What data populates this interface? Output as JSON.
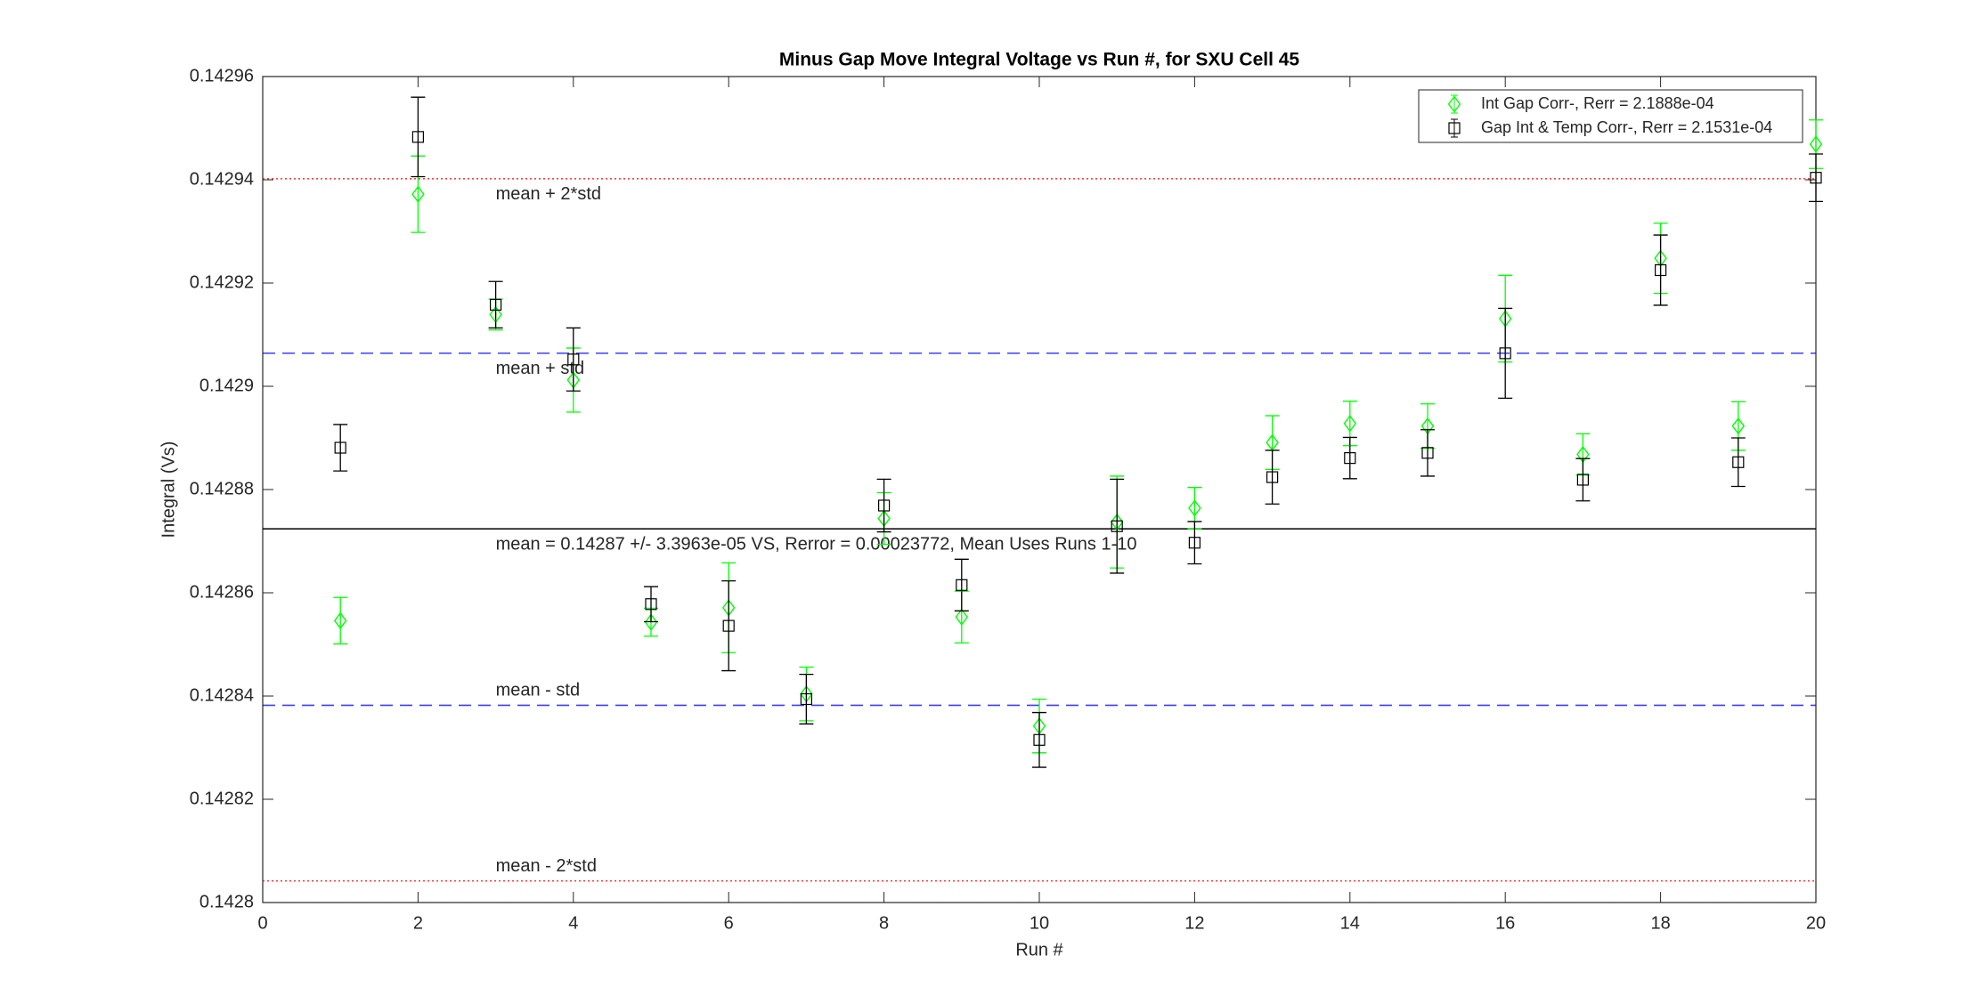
{
  "chart_data": {
    "type": "errorbar",
    "title": "Minus Gap Move Integral Voltage vs Run #, for SXU Cell 45",
    "xlabel": "Run #",
    "ylabel": "Integral (Vs)",
    "x": [
      1,
      2,
      3,
      4,
      5,
      6,
      7,
      8,
      9,
      10,
      11,
      12,
      13,
      14,
      15,
      16,
      17,
      18,
      19,
      20
    ],
    "series": [
      {
        "name": "Int Gap Corr-, Rerr = 2.1888e-04",
        "color": "#00ff00",
        "marker": "diamond",
        "values": [
          0.1428546,
          0.1429372,
          0.1429139,
          0.1429012,
          0.1428543,
          0.1428571,
          0.1428404,
          0.1428744,
          0.1428553,
          0.1428342,
          0.1428737,
          0.1428764,
          0.1428891,
          0.1428928,
          0.1428923,
          0.1429131,
          0.1428868,
          0.1429248,
          0.1428923,
          0.1429469
        ],
        "errors": [
          4.5e-06,
          7.4e-06,
          3e-06,
          6.2e-06,
          2.7e-06,
          8.7e-06,
          5.2e-06,
          5e-06,
          5e-06,
          5.2e-06,
          8.9e-06,
          4e-06,
          5.2e-06,
          4.3e-06,
          4.3e-06,
          8.4e-06,
          4e-06,
          6.8e-06,
          4.7e-06,
          4.7e-06
        ]
      },
      {
        "name": "Gap Int & Temp Corr-, Rerr = 2.1531e-04",
        "color": "#000000",
        "marker": "square",
        "values": [
          0.1428881,
          0.1429483,
          0.1429158,
          0.1429052,
          0.1428578,
          0.1428536,
          0.1428394,
          0.1428769,
          0.1428615,
          0.1428315,
          0.1428729,
          0.1428697,
          0.1428824,
          0.1428861,
          0.1428871,
          0.1429064,
          0.1428819,
          0.1429225,
          0.1428853,
          0.1429404
        ],
        "errors": [
          4.5e-06,
          7.7e-06,
          4.5e-06,
          6.1e-06,
          3.4e-06,
          8.7e-06,
          4.8e-06,
          5.1e-06,
          5e-06,
          5.3e-06,
          9.1e-06,
          4.1e-06,
          5.2e-06,
          4e-06,
          4.5e-06,
          8.7e-06,
          4.1e-06,
          6.8e-06,
          4.7e-06,
          4.6e-06
        ]
      }
    ],
    "reference_lines": [
      {
        "value": 0.1429402,
        "label": "mean + 2*std",
        "color": "#ff0000",
        "style": "dotted"
      },
      {
        "value": 0.1429064,
        "label": "mean + std",
        "color": "#0000ff",
        "style": "dashed"
      },
      {
        "value": 0.1428724,
        "label": "mean = 0.14287 +/- 3.3963e-05 VS, Rerror = 0.00023772, Mean Uses Runs 1-10",
        "color": "#000000",
        "style": "solid"
      },
      {
        "value": 0.1428382,
        "label": "mean - std",
        "color": "#0000ff",
        "style": "dashed"
      },
      {
        "value": 0.1428042,
        "label": "mean - 2*std",
        "color": "#ff0000",
        "style": "dotted"
      }
    ],
    "xlim": [
      0,
      20
    ],
    "ylim": [
      0.1428,
      0.14296
    ],
    "xticks": [
      0,
      2,
      4,
      6,
      8,
      10,
      12,
      14,
      16,
      18,
      20
    ],
    "yticks": [
      0.1428,
      0.14282,
      0.14284,
      0.14286,
      0.14288,
      0.1429,
      0.14292,
      0.14294,
      0.14296
    ],
    "legend": "top-right",
    "grid": false
  }
}
